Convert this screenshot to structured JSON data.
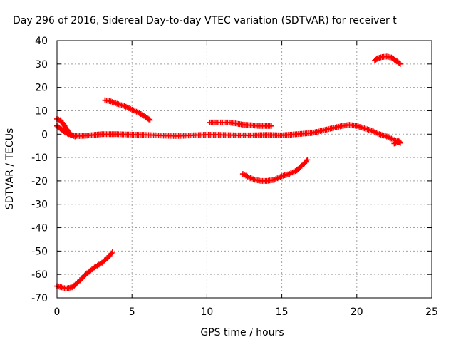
{
  "chart_data": {
    "type": "scatter",
    "title": "Day 296 of 2016, Sidereal Day-to-day VTEC variation (SDTVAR) for receiver t",
    "xlabel": "GPS time / hours",
    "ylabel": "SDTVAR / TECUs",
    "xlim": [
      0,
      25
    ],
    "ylim": [
      -70,
      40
    ],
    "xticks": [
      0,
      5,
      10,
      15,
      20,
      25
    ],
    "yticks": [
      -70,
      -60,
      -50,
      -40,
      -30,
      -20,
      -10,
      0,
      10,
      20,
      30,
      40
    ],
    "grid": true,
    "color": "#ff0000",
    "series": [
      {
        "points": [
          [
            0.0,
            6.5
          ],
          [
            0.2,
            6.0
          ],
          [
            0.4,
            4.5
          ],
          [
            0.6,
            2.5
          ],
          [
            0.8,
            0.5
          ],
          [
            1.0,
            -0.5
          ],
          [
            1.2,
            -1.0
          ]
        ]
      },
      {
        "points": [
          [
            0.0,
            3.5
          ],
          [
            0.3,
            2.0
          ],
          [
            0.6,
            0.5
          ],
          [
            1.0,
            -0.5
          ],
          [
            1.5,
            -0.8
          ],
          [
            2.0,
            -0.6
          ],
          [
            2.5,
            -0.3
          ],
          [
            3.0,
            0.0
          ],
          [
            3.5,
            0.0
          ],
          [
            4.0,
            0.0
          ],
          [
            5.0,
            -0.2
          ],
          [
            6.0,
            -0.3
          ],
          [
            7.0,
            -0.6
          ],
          [
            8.0,
            -0.8
          ],
          [
            9.0,
            -0.5
          ],
          [
            10.0,
            -0.2
          ],
          [
            11.0,
            -0.3
          ],
          [
            12.0,
            -0.5
          ],
          [
            13.0,
            -0.5
          ],
          [
            14.0,
            -0.3
          ],
          [
            15.0,
            -0.5
          ],
          [
            16.0,
            0.0
          ],
          [
            17.0,
            0.5
          ],
          [
            18.0,
            2.0
          ],
          [
            19.0,
            3.5
          ],
          [
            19.5,
            4.0
          ],
          [
            20.0,
            3.5
          ],
          [
            20.5,
            2.5
          ],
          [
            21.0,
            1.5
          ],
          [
            21.5,
            0.0
          ],
          [
            22.0,
            -1.0
          ],
          [
            22.5,
            -2.5
          ],
          [
            22.9,
            -3.5
          ]
        ]
      },
      {
        "points": [
          [
            22.5,
            -4.0
          ],
          [
            22.6,
            -3.8
          ],
          [
            22.7,
            -3.5
          ],
          [
            22.8,
            -3.0
          ],
          [
            22.9,
            -3.8
          ]
        ]
      },
      {
        "points": [
          [
            3.2,
            14.5
          ],
          [
            3.6,
            14.0
          ],
          [
            4.0,
            13.0
          ],
          [
            4.5,
            12.0
          ],
          [
            5.0,
            10.5
          ],
          [
            5.5,
            9.0
          ],
          [
            6.0,
            7.0
          ],
          [
            6.2,
            6.0
          ]
        ]
      },
      {
        "points": [
          [
            10.2,
            5.0
          ],
          [
            10.8,
            5.0
          ],
          [
            11.5,
            5.0
          ],
          [
            12.0,
            4.5
          ],
          [
            12.5,
            4.0
          ],
          [
            13.0,
            3.8
          ],
          [
            13.5,
            3.5
          ],
          [
            14.0,
            3.5
          ],
          [
            14.3,
            3.5
          ]
        ]
      },
      {
        "points": [
          [
            12.4,
            -17.0
          ],
          [
            12.8,
            -18.5
          ],
          [
            13.2,
            -19.5
          ],
          [
            13.6,
            -20.0
          ],
          [
            14.0,
            -20.0
          ],
          [
            14.5,
            -19.5
          ],
          [
            15.0,
            -18.0
          ],
          [
            15.5,
            -17.0
          ],
          [
            16.0,
            -15.5
          ],
          [
            16.5,
            -12.5
          ],
          [
            16.7,
            -11.0
          ]
        ]
      },
      {
        "points": [
          [
            0.0,
            -65.0
          ],
          [
            0.3,
            -65.5
          ],
          [
            0.6,
            -66.0
          ],
          [
            1.0,
            -65.5
          ],
          [
            1.3,
            -64.0
          ],
          [
            1.6,
            -62.0
          ],
          [
            2.0,
            -59.5
          ],
          [
            2.5,
            -57.0
          ],
          [
            3.0,
            -55.0
          ],
          [
            3.5,
            -52.0
          ],
          [
            3.7,
            -50.5
          ]
        ]
      },
      {
        "points": [
          [
            21.2,
            31.5
          ],
          [
            21.4,
            32.5
          ],
          [
            21.7,
            33.0
          ],
          [
            22.0,
            33.2
          ],
          [
            22.3,
            32.8
          ],
          [
            22.6,
            31.5
          ],
          [
            22.9,
            30.0
          ]
        ]
      }
    ]
  }
}
